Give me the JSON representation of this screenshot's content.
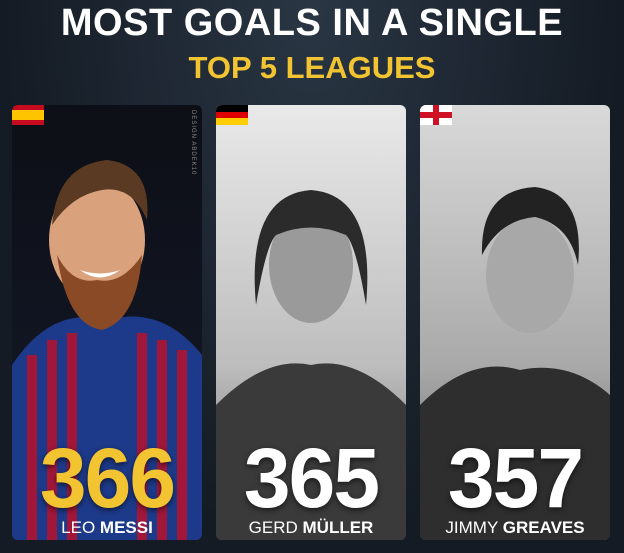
{
  "header": {
    "title": "MOST GOALS IN A SINGLE",
    "subtitle": "TOP 5 LEAGUES"
  },
  "watermark": "DESIGN ABDEK10",
  "cards": [
    {
      "goals": 366,
      "first_name": "LEO",
      "last_name": "MESSI"
    },
    {
      "goals": 365,
      "first_name": "GERD",
      "last_name": "MÜLLER"
    },
    {
      "goals": 357,
      "first_name": "JIMMY",
      "last_name": "GREAVES"
    }
  ]
}
